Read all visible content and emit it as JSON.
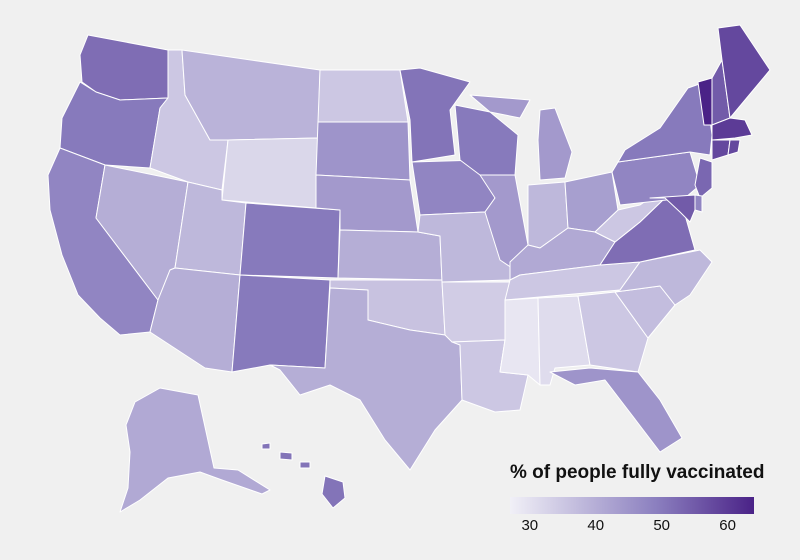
{
  "legend": {
    "title": "% of people fully vaccinated",
    "ticks": [
      "30",
      "40",
      "50",
      "60"
    ],
    "tick_values": [
      30,
      40,
      50,
      60
    ],
    "min": 27,
    "max": 64,
    "color_low": "#f1f0f7",
    "color_high": "#4a2287"
  },
  "background_color": "#f0f0f0",
  "states": {
    "WA": 52,
    "OR": 50,
    "CA": 48,
    "NV": 40,
    "ID": 35,
    "MT": 39,
    "WY": 32,
    "UT": 38,
    "AZ": 40,
    "NM": 50,
    "CO": 50,
    "ND": 35,
    "SD": 45,
    "NE": 44,
    "KS": 40,
    "OK": 36,
    "TX": 40,
    "MN": 51,
    "IA": 48,
    "MO": 38,
    "AR": 34,
    "LA": 35,
    "WI": 50,
    "IL": 44,
    "MI": 44,
    "IN": 38,
    "OH": 43,
    "KY": 41,
    "TN": 35,
    "MS": 29,
    "AL": 31,
    "GA": 35,
    "FL": 45,
    "SC": 37,
    "NC": 38,
    "VA": 52,
    "WV": 35,
    "PA": 48,
    "NY": 50,
    "VT": 64,
    "NH": 55,
    "ME": 58,
    "MA": 60,
    "CT": 58,
    "RI": 58,
    "NJ": 53,
    "DE": 48,
    "MD": 55,
    "AK": 41,
    "HI": 51
  }
}
